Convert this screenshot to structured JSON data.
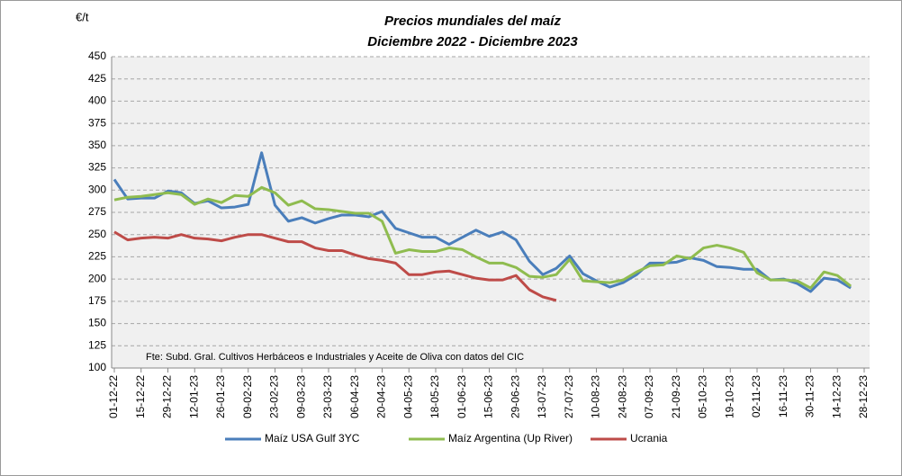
{
  "chart_data": {
    "type": "line",
    "title": "Precios mundiales del maíz",
    "subtitle": "Diciembre 2022 - Diciembre 2023",
    "ylabel": "€/t",
    "annotation": "Fte: Subd. Gral. Cultivos Herbáceos e Industriales y Aceite de Oliva con datos del CIC",
    "categories": [
      "01-12-22",
      null,
      "15-12-22",
      null,
      "29-12-22",
      null,
      "12-01-23",
      null,
      "26-01-23",
      null,
      "09-02-23",
      null,
      "23-02-23",
      null,
      "09-03-23",
      null,
      "23-03-23",
      null,
      "06-04-23",
      null,
      "20-04-23",
      null,
      "04-05-23",
      null,
      "18-05-23",
      null,
      "01-06-23",
      null,
      "15-06-23",
      null,
      "29-06-23",
      null,
      "13-07-23",
      null,
      "27-07-23",
      null,
      "10-08-23",
      null,
      "24-08-23",
      null,
      "07-09-23",
      null,
      "21-09-23",
      null,
      "05-10-23",
      null,
      "19-10-23",
      null,
      "02-11-23",
      null,
      "16-11-23",
      null,
      "30-11-23",
      null,
      "14-12-23",
      null,
      "28-12-23"
    ],
    "series": [
      {
        "name": "Maíz USA Gulf 3YC",
        "color": "#4a7ebb",
        "values": [
          312,
          290,
          291,
          291,
          299,
          297,
          285,
          288,
          280,
          281,
          284,
          342,
          283,
          265,
          269,
          263,
          268,
          272,
          272,
          270,
          276,
          257,
          252,
          247,
          247,
          239,
          247,
          255,
          248,
          253,
          244,
          220,
          205,
          212,
          226,
          206,
          198,
          191,
          196,
          205,
          218,
          218,
          219,
          224,
          221,
          214,
          213,
          211,
          211,
          199,
          200,
          195,
          186,
          201,
          199,
          190,
          null
        ]
      },
      {
        "name": "Maíz Argentina (Up River)",
        "color": "#8fbc4f",
        "values": [
          289,
          292,
          293,
          295,
          297,
          295,
          284,
          290,
          286,
          294,
          293,
          303,
          297,
          283,
          288,
          279,
          278,
          276,
          274,
          274,
          265,
          229,
          233,
          231,
          231,
          235,
          233,
          225,
          218,
          218,
          213,
          203,
          202,
          205,
          222,
          198,
          197,
          196,
          199,
          208,
          215,
          216,
          226,
          223,
          235,
          238,
          235,
          230,
          207,
          199,
          199,
          198,
          190,
          208,
          204,
          192,
          null
        ]
      },
      {
        "name": "Ucrania",
        "color": "#be4b48",
        "values": [
          253,
          244,
          246,
          247,
          246,
          250,
          246,
          245,
          243,
          247,
          250,
          250,
          246,
          242,
          242,
          235,
          232,
          232,
          227,
          223,
          221,
          218,
          205,
          205,
          208,
          209,
          205,
          201,
          199,
          199,
          204,
          188,
          180,
          176,
          null,
          null,
          null,
          null,
          null,
          null,
          null,
          null,
          null,
          null,
          null,
          null,
          null,
          null,
          null,
          null,
          null,
          null,
          null,
          null,
          null,
          null,
          null
        ]
      }
    ],
    "ylim": [
      100,
      450
    ],
    "yticks": [
      100,
      125,
      150,
      175,
      200,
      225,
      250,
      275,
      300,
      325,
      350,
      375,
      400,
      425,
      450
    ],
    "grid": true,
    "legend": "bottom"
  }
}
